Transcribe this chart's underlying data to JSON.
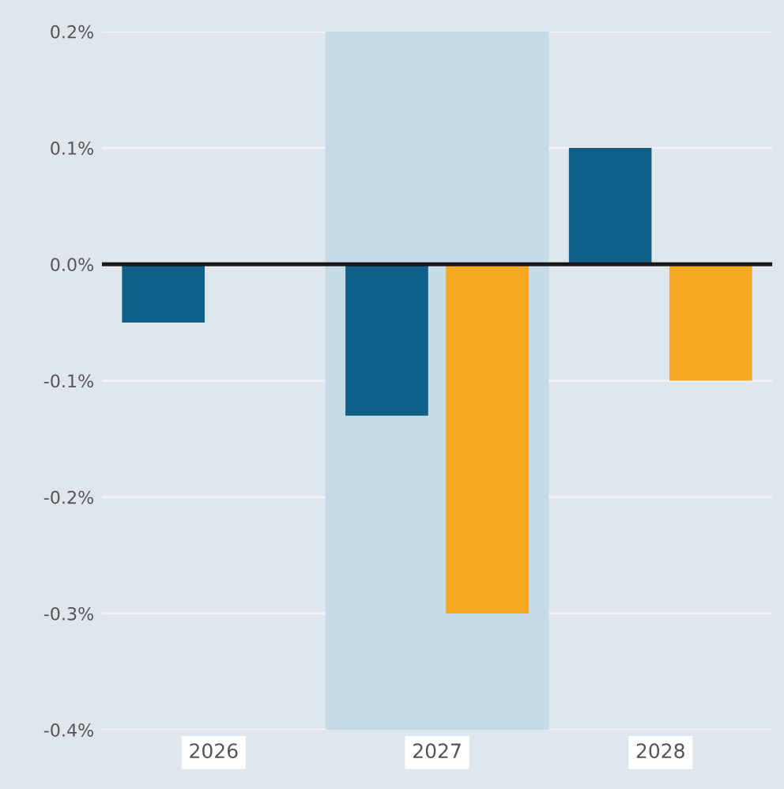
{
  "chart_data": {
    "type": "bar",
    "categories": [
      "2026",
      "2027",
      "2028"
    ],
    "series": [
      {
        "color": "#0e5f8a",
        "values": [
          -0.05,
          -0.13,
          0.1
        ]
      },
      {
        "color": "#f5a623",
        "values": [
          null,
          -0.3,
          -0.1
        ]
      }
    ],
    "ylim": [
      -0.4,
      0.2
    ],
    "yticks": [
      {
        "value": 0.2,
        "label": "0.2%"
      },
      {
        "value": 0.1,
        "label": "0.1%"
      },
      {
        "value": 0.0,
        "label": "0.0%"
      },
      {
        "value": -0.1,
        "label": "-0.1%"
      },
      {
        "value": -0.2,
        "label": "-0.2%"
      },
      {
        "value": -0.3,
        "label": "-0.3%"
      },
      {
        "value": -0.4,
        "label": "-0.4%"
      }
    ],
    "ref_lines": [
      {
        "axis": "y",
        "value": 0.0,
        "color": "#1a1a1a"
      }
    ],
    "bands": [
      {
        "axis": "x",
        "from": "2027",
        "to": "2027",
        "color": "#c5dbe5"
      }
    ],
    "grid": "y",
    "legend": false
  }
}
